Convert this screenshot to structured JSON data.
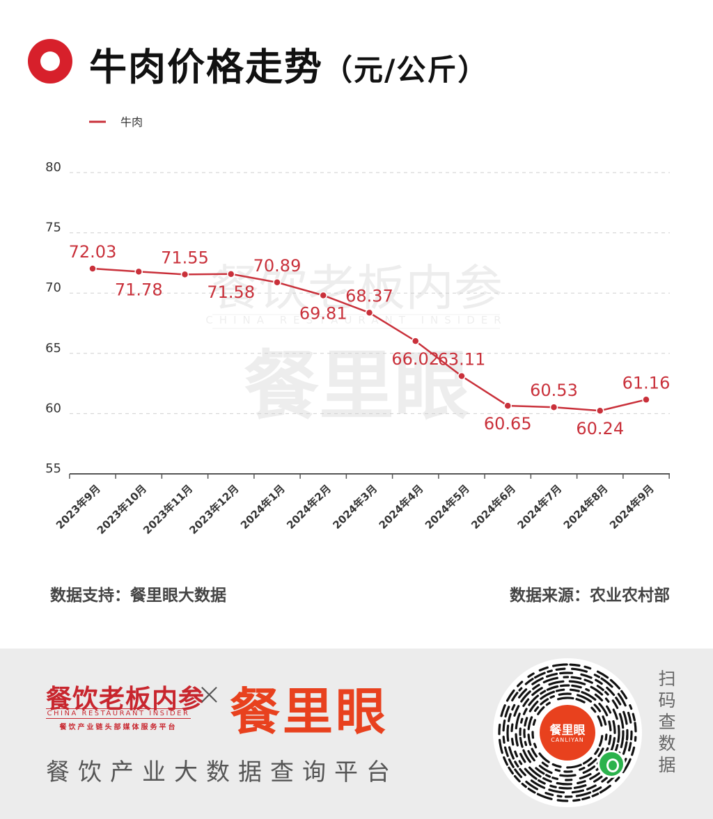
{
  "header": {
    "title": "牛肉价格走势",
    "title_unit": "（元/公斤）"
  },
  "chart_data": {
    "type": "line",
    "ylim": [
      55,
      80
    ],
    "yticks": [
      55,
      60,
      65,
      70,
      75,
      80
    ],
    "grid": true,
    "legend_position": "top-left",
    "categories": [
      "2023年9月",
      "2023年10月",
      "2023年11月",
      "2023年12月",
      "2024年1月",
      "2024年2月",
      "2024年3月",
      "2024年4月",
      "2024年5月",
      "2024年6月",
      "2024年7月",
      "2024年8月",
      "2024年9月"
    ],
    "series": [
      {
        "name": "牛肉",
        "color": "#c9303a",
        "values": [
          72.03,
          71.78,
          71.55,
          71.58,
          70.89,
          69.81,
          68.37,
          66.02,
          63.11,
          60.65,
          60.53,
          60.24,
          61.16
        ],
        "labels": [
          "72.03",
          "71.78",
          "71.55",
          "71.58",
          "70.89",
          "69.81",
          "68.37",
          "66.02",
          "63.11",
          "60.65",
          "60.53",
          "60.24",
          "61.16"
        ]
      }
    ]
  },
  "footer": {
    "support": "数据支持：餐里眼大数据",
    "source": "数据来源：农业农村部"
  },
  "watermark": {
    "cn": "餐饮老板内参",
    "en": "CHINA RESTAURANT INSIDER",
    "logo": "餐里眼"
  },
  "bottom": {
    "brand_cn": "餐饮老板内参",
    "brand_en": "CHINA RESTAURANT INSIDER",
    "brand_tag": "餐饮产业链头部媒体服务平台",
    "cross": "×",
    "brand_main": "餐里眼",
    "platform": "餐饮产业大数据查询平台",
    "qr_center_cn": "餐里眼",
    "qr_center_en": "CANLIYAN",
    "scan_text": "扫码查数据"
  },
  "colors": {
    "accent": "#d7202b",
    "line": "#c9303a",
    "brand_orange": "#e8411e"
  },
  "icons": [
    "title-ring-icon",
    "qr-code-icon",
    "mini-program-icon"
  ]
}
